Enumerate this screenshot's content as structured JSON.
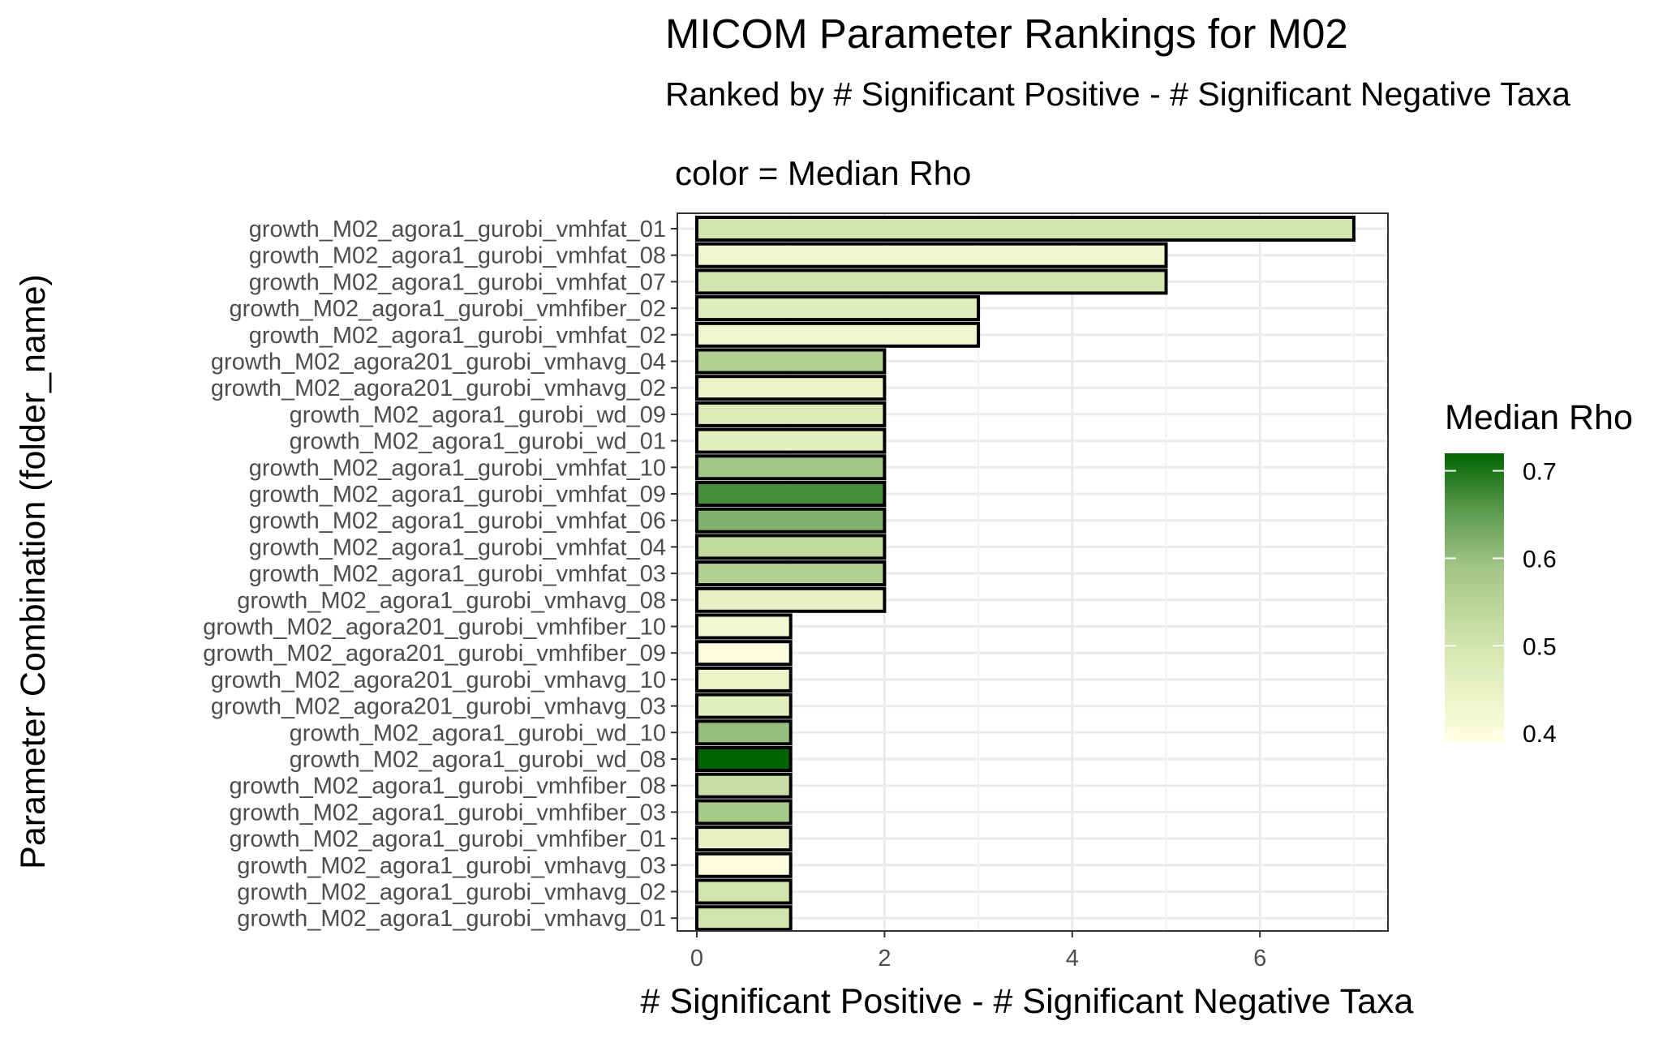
{
  "chart_data": {
    "type": "bar",
    "orientation": "horizontal",
    "title": "MICOM Parameter Rankings for M02",
    "subtitle": "Ranked by # Significant Positive - # Significant Negative Taxa",
    "tag": "color = Median Rho",
    "xlabel": "# Significant Positive - # Significant Negative Taxa",
    "ylabel": "Parameter Combination (folder_name)",
    "xlim": [
      -0.15,
      7.35
    ],
    "x_ticks": [
      "0",
      "2",
      "4",
      "6"
    ],
    "grid": true,
    "legend": {
      "title": "Median Rho",
      "placement": "right",
      "ticks": [
        "0.7",
        "0.6",
        "0.5",
        "0.4"
      ],
      "range": [
        0.39,
        0.72
      ],
      "color_low": "#ffffe0",
      "color_high": "#006400"
    },
    "bar_outline_color": "#000000",
    "categories": [
      "growth_M02_agora1_gurobi_vmhfat_01",
      "growth_M02_agora1_gurobi_vmhfat_08",
      "growth_M02_agora1_gurobi_vmhfat_07",
      "growth_M02_agora1_gurobi_vmhfiber_02",
      "growth_M02_agora1_gurobi_vmhfat_02",
      "growth_M02_agora201_gurobi_vmhavg_04",
      "growth_M02_agora201_gurobi_vmhavg_02",
      "growth_M02_agora1_gurobi_wd_09",
      "growth_M02_agora1_gurobi_wd_01",
      "growth_M02_agora1_gurobi_vmhfat_10",
      "growth_M02_agora1_gurobi_vmhfat_09",
      "growth_M02_agora1_gurobi_vmhfat_06",
      "growth_M02_agora1_gurobi_vmhfat_04",
      "growth_M02_agora1_gurobi_vmhfat_03",
      "growth_M02_agora1_gurobi_vmhavg_08",
      "growth_M02_agora201_gurobi_vmhfiber_10",
      "growth_M02_agora201_gurobi_vmhfiber_09",
      "growth_M02_agora201_gurobi_vmhavg_10",
      "growth_M02_agora201_gurobi_vmhavg_03",
      "growth_M02_agora1_gurobi_wd_10",
      "growth_M02_agora1_gurobi_wd_08",
      "growth_M02_agora1_gurobi_vmhfiber_08",
      "growth_M02_agora1_gurobi_vmhfiber_03",
      "growth_M02_agora1_gurobi_vmhfiber_01",
      "growth_M02_agora1_gurobi_vmhavg_03",
      "growth_M02_agora1_gurobi_vmhavg_02",
      "growth_M02_agora1_gurobi_vmhavg_01"
    ],
    "values": [
      7,
      5,
      5,
      3,
      3,
      2,
      2,
      2,
      2,
      2,
      2,
      2,
      2,
      2,
      2,
      1,
      1,
      1,
      1,
      1,
      1,
      1,
      1,
      1,
      1,
      1,
      1
    ],
    "median_rho": [
      0.5,
      0.43,
      0.5,
      0.47,
      0.43,
      0.56,
      0.44,
      0.48,
      0.46,
      0.59,
      0.67,
      0.62,
      0.53,
      0.56,
      0.45,
      0.42,
      0.4,
      0.44,
      0.46,
      0.6,
      0.72,
      0.52,
      0.58,
      0.45,
      0.4,
      0.5,
      0.5
    ]
  }
}
